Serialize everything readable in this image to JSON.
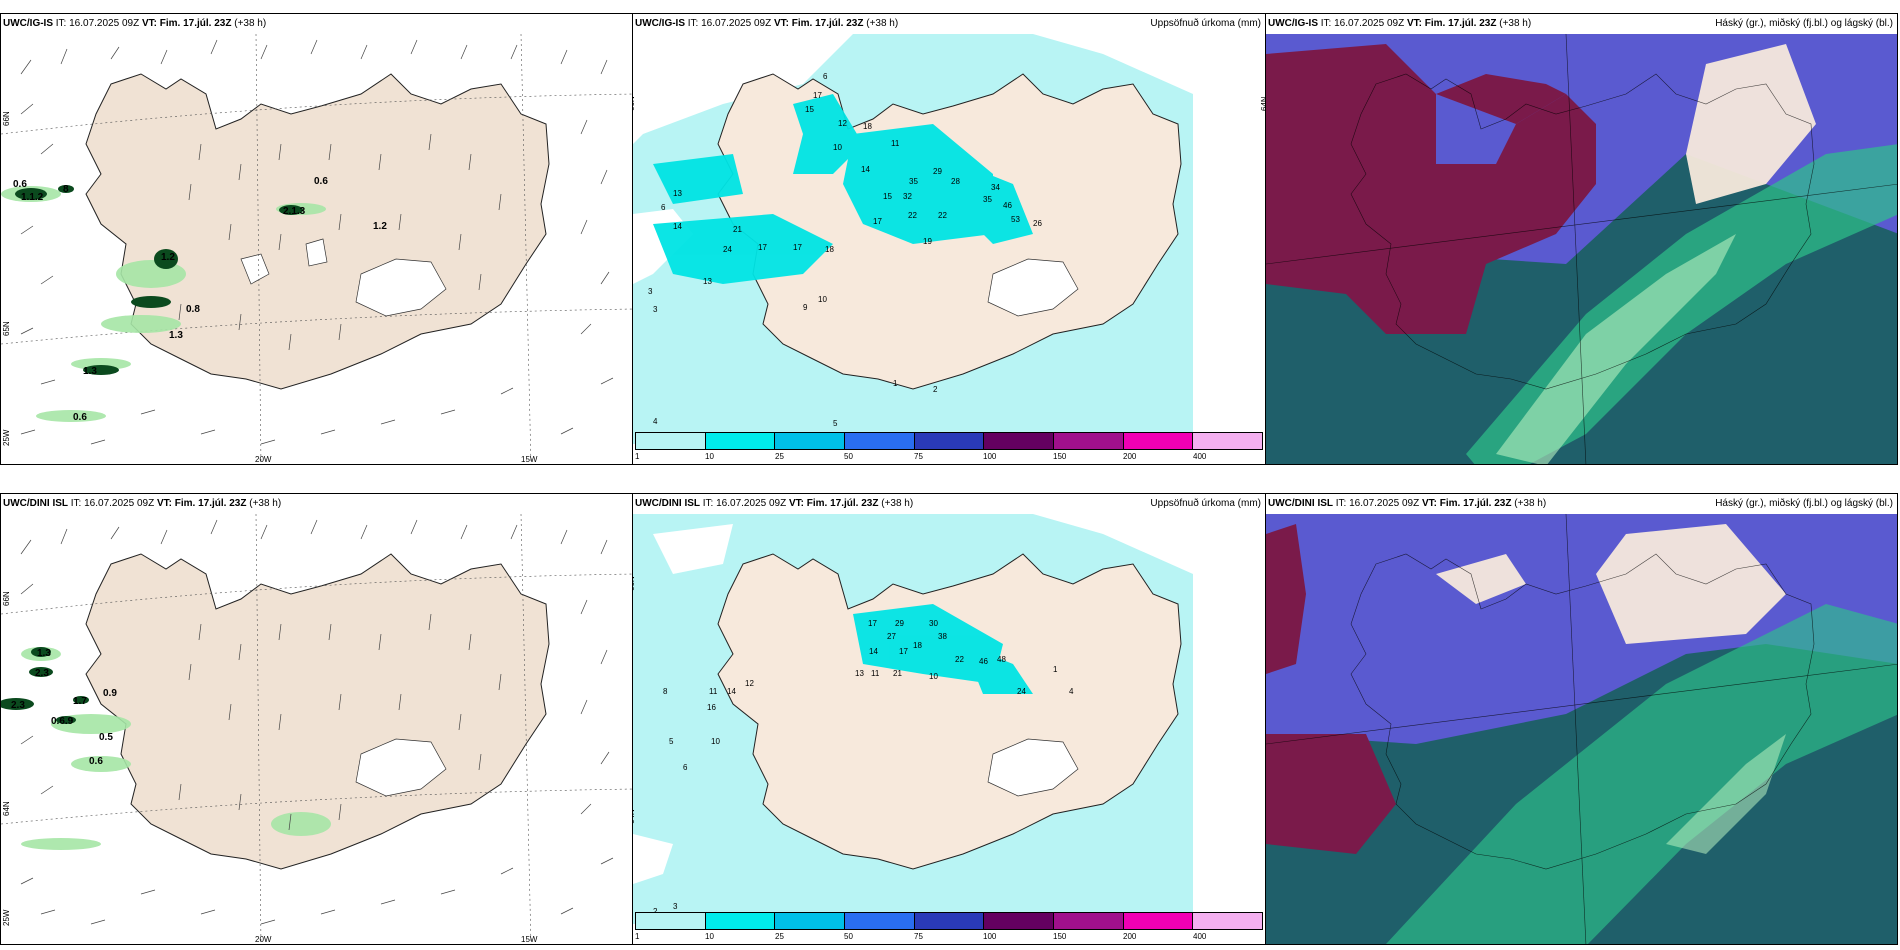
{
  "panels": [
    {
      "model": "UWC/IG-IS",
      "it": "16.07.2025 09Z",
      "vt": "Fim. 17.júl. 23Z",
      "lead": "(+38 h)",
      "right": ""
    },
    {
      "model": "UWC/IG-IS",
      "it": "16.07.2025 09Z",
      "vt": "Fim. 17.júl. 23Z",
      "lead": "(+38 h)",
      "right": "Uppsöfnuð úrkoma (mm)"
    },
    {
      "model": "UWC/IG-IS",
      "it": "16.07.2025 09Z",
      "vt": "Fim. 17.júl. 23Z",
      "lead": "(+38 h)",
      "right": "Háský (gr.), miðský (fj.bl.) og lágský (bl.)"
    },
    {
      "model": "UWC/DINI ISL",
      "it": "16.07.2025 09Z",
      "vt": "Fim. 17.júl. 23Z",
      "lead": "(+38 h)",
      "right": ""
    },
    {
      "model": "UWC/DINI ISL",
      "it": "16.07.2025 09Z",
      "vt": "Fim. 17.júl. 23Z",
      "lead": "(+38 h)",
      "right": "Uppsöfnuð úrkoma (mm)"
    },
    {
      "model": "UWC/DINI ISL",
      "it": "16.07.2025 09Z",
      "vt": "Fim. 17.júl. 23Z",
      "lead": "(+38 h)",
      "right": "Háský (gr.), miðský (fj.bl.) og lágský (bl.)"
    }
  ],
  "labels": {
    "it_prefix": "IT:",
    "vt_prefix": "VT:"
  },
  "grid_labels": {
    "lat66": "66N",
    "lat64": "64N",
    "lat65": "65N",
    "lon20": "20W",
    "lon15": "15W",
    "lon25": "25W"
  },
  "colorbar": {
    "ticks": [
      "1",
      "10",
      "25",
      "50",
      "75",
      "100",
      "150",
      "200",
      "400"
    ],
    "colors": [
      "#b8f4f4",
      "#00ecec",
      "#00c0e8",
      "#2a6ef0",
      "#2a3ab8",
      "#640060",
      "#a0108c",
      "#f000b4",
      "#f4b0f0"
    ]
  },
  "precip_top": [
    "0.6",
    "1.1.2",
    "8",
    "0.6",
    "2.1.3",
    "1.2",
    "1.2",
    "0.8",
    "1.3",
    "1.3",
    "0.6"
  ],
  "precip_bottom": [
    "1.3",
    "2.3",
    "1.7",
    "0.9",
    "0.6.9",
    "0.5",
    "0.6",
    "2.3"
  ],
  "accum_top": [
    "6",
    "17",
    "15",
    "12",
    "10",
    "18",
    "11",
    "14",
    "29",
    "28",
    "35",
    "32",
    "15",
    "34",
    "35",
    "46",
    "53",
    "26",
    "22",
    "22",
    "17",
    "19",
    "21",
    "24",
    "17",
    "17",
    "18",
    "13",
    "14",
    "6",
    "13",
    "9",
    "10",
    "3",
    "3",
    "1",
    "2",
    "5",
    "4"
  ],
  "accum_bottom": [
    "17",
    "29",
    "30",
    "27",
    "18",
    "38",
    "14",
    "17",
    "22",
    "46",
    "48",
    "24",
    "13",
    "11",
    "21",
    "10",
    "1",
    "4",
    "14",
    "12",
    "11",
    "16",
    "10",
    "8",
    "5",
    "6",
    "2",
    "3"
  ],
  "colors": {
    "land": "#f7e9dc",
    "panel_border": "#000000",
    "high_cloud": "#7a1a4a",
    "mid_cloud": "#5a5ad0",
    "low_cloud": "#1a6a6e",
    "green": "#40e0a0"
  }
}
